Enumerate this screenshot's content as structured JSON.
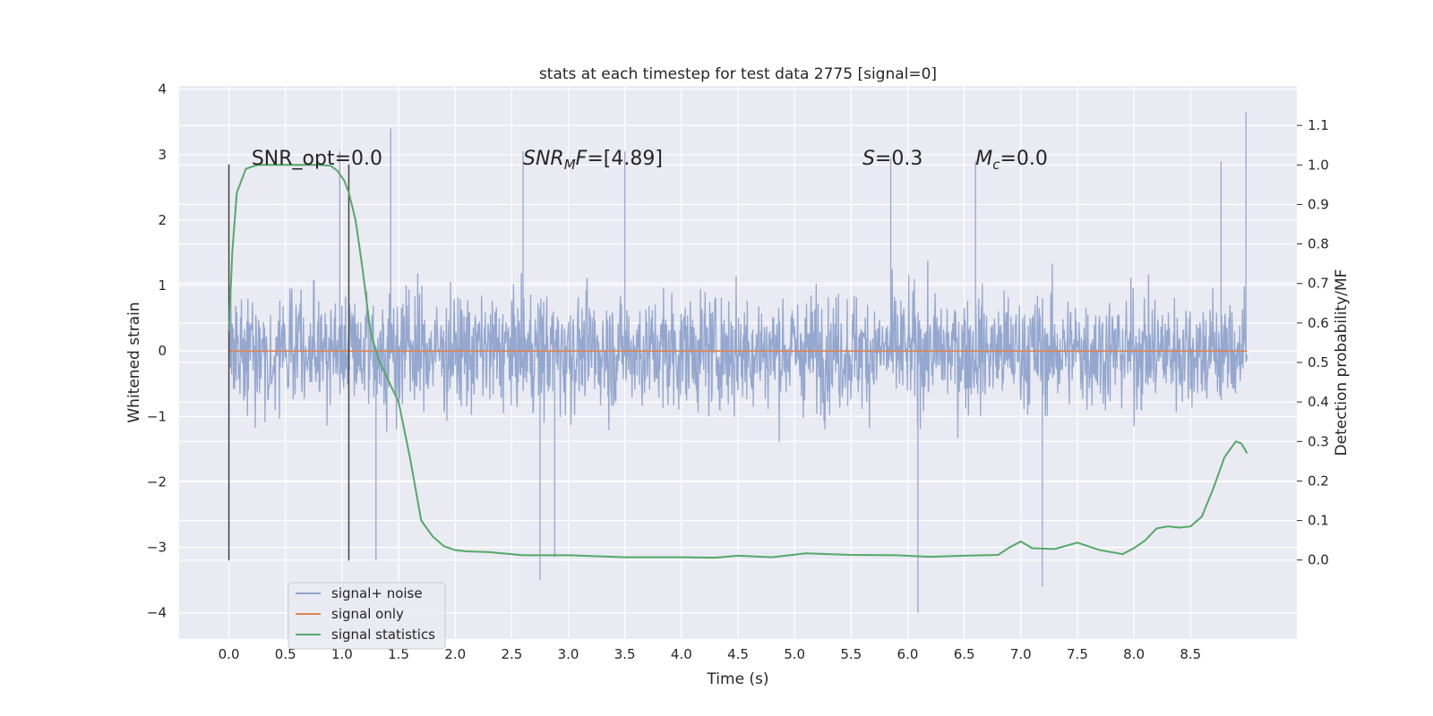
{
  "chart_data": {
    "type": "line",
    "title": "stats at each timestep for test data 2775 [signal=0]",
    "xlabel": "Time (s)",
    "ylabel": "Whitened strain",
    "ylabel_right": "Detection probability/MF",
    "xlim": [
      -0.44,
      9.44
    ],
    "ylim": [
      -4.4,
      4.05
    ],
    "ylim_right": [
      -0.2,
      1.2
    ],
    "x_ticks": [
      "0.0",
      "0.5",
      "1.0",
      "1.5",
      "2.0",
      "2.5",
      "3.0",
      "3.5",
      "4.0",
      "4.5",
      "5.0",
      "5.5",
      "6.0",
      "6.5",
      "7.0",
      "7.5",
      "8.0",
      "8.5"
    ],
    "y_ticks": [
      "4",
      "3",
      "2",
      "1",
      "0",
      "−1",
      "−2",
      "−3",
      "−4"
    ],
    "y_ticks_right": [
      "1.1",
      "1.0",
      "0.9",
      "0.8",
      "0.7",
      "0.6",
      "0.5",
      "0.4",
      "0.3",
      "0.2",
      "0.1",
      "0.0"
    ],
    "grid": true,
    "legend_position": "lower-left",
    "colors": {
      "noise": "#8fa3cc",
      "signal": "#dd8452",
      "stats": "#55a868",
      "background": "#eaeaf2",
      "grid": "#ffffff",
      "vline": "#444444"
    },
    "series": [
      {
        "name": "signal+ noise",
        "kind": "noise",
        "x_range": [
          0,
          9.0
        ],
        "band_min": [
          -1.9,
          -2.8,
          -2.5,
          -2.7,
          -2.7,
          -3.0,
          -2.9,
          -3.0,
          -3.2,
          -3.5,
          -2.9,
          -3.0,
          -2.9,
          -3.0,
          -2.8,
          -2.9,
          -3.5,
          -2.8,
          -2.9,
          -2.9,
          -3.0,
          -2.7,
          -2.8,
          -3.0,
          -4.0,
          -2.8,
          -2.8,
          -3.5,
          -3.6,
          -2.8,
          -2.7,
          -2.9,
          -3.0,
          -2.9,
          -2.6,
          -2.4,
          -2.4
        ],
        "band_max": [
          2.4,
          2.4,
          2.5,
          2.8,
          3.0,
          3.4,
          2.8,
          2.5,
          2.8,
          2.6,
          3.1,
          2.6,
          2.9,
          2.8,
          2.9,
          2.7,
          2.9,
          3.0,
          2.9,
          2.8,
          2.9,
          2.8,
          2.9,
          2.7,
          3.0,
          2.9,
          2.7,
          2.8,
          2.9,
          2.6,
          2.6,
          2.9,
          2.6,
          2.4,
          2.5,
          2.6,
          3.6
        ],
        "peaks": [
          [
            0.98,
            3.05
          ],
          [
            1.43,
            3.4
          ],
          [
            2.6,
            3.05
          ],
          [
            2.75,
            -3.5
          ],
          [
            2.88,
            -3.15
          ],
          [
            3.5,
            3.05
          ],
          [
            5.85,
            2.95
          ],
          [
            6.09,
            -4.0
          ],
          [
            6.6,
            2.9
          ],
          [
            7.19,
            -3.6
          ],
          [
            8.77,
            2.9
          ],
          [
            8.99,
            3.65
          ],
          [
            1.3,
            -3.2
          ]
        ]
      },
      {
        "name": "signal only",
        "kind": "flat",
        "x": [
          0.0,
          9.0
        ],
        "y": [
          0.0,
          0.0
        ]
      },
      {
        "name": "signal statistics",
        "kind": "probability",
        "axis": "right",
        "x": [
          0.0,
          0.03,
          0.07,
          0.15,
          0.25,
          0.4,
          0.6,
          0.8,
          0.9,
          0.96,
          1.02,
          1.06,
          1.12,
          1.18,
          1.25,
          1.32,
          1.4,
          1.5,
          1.6,
          1.7,
          1.8,
          1.9,
          2.0,
          2.1,
          2.3,
          2.6,
          3.0,
          3.5,
          4.0,
          4.3,
          4.5,
          4.8,
          5.1,
          5.5,
          5.9,
          6.2,
          6.5,
          6.8,
          6.9,
          7.0,
          7.1,
          7.3,
          7.5,
          7.7,
          7.9,
          8.0,
          8.1,
          8.2,
          8.3,
          8.4,
          8.5,
          8.6,
          8.7,
          8.8,
          8.9,
          8.95,
          9.0
        ],
        "y": [
          0.58,
          0.78,
          0.93,
          0.99,
          1.0,
          1.0,
          1.0,
          1.0,
          0.998,
          0.985,
          0.96,
          0.93,
          0.86,
          0.74,
          0.58,
          0.51,
          0.46,
          0.4,
          0.26,
          0.1,
          0.06,
          0.035,
          0.025,
          0.022,
          0.02,
          0.012,
          0.012,
          0.007,
          0.007,
          0.006,
          0.011,
          0.007,
          0.017,
          0.013,
          0.012,
          0.008,
          0.011,
          0.013,
          0.032,
          0.047,
          0.03,
          0.028,
          0.044,
          0.025,
          0.015,
          0.03,
          0.05,
          0.08,
          0.085,
          0.082,
          0.085,
          0.11,
          0.18,
          0.26,
          0.3,
          0.295,
          0.27
        ]
      }
    ],
    "vlines": [
      0.0,
      1.06
    ],
    "vline_range": [
      -3.2,
      2.85
    ],
    "annotations": [
      {
        "text": "SNR_opt=0.0",
        "x": 0.2,
        "y": 2.85
      },
      {
        "text": "SNR_MF=[4.89]",
        "x": 2.6,
        "y": 2.85,
        "math": "snrmf"
      },
      {
        "text": "S=0.3",
        "x": 5.6,
        "y": 2.85,
        "math": "s"
      },
      {
        "text": "M_c=0.0",
        "x": 6.6,
        "y": 2.85,
        "math": "mc"
      }
    ]
  }
}
